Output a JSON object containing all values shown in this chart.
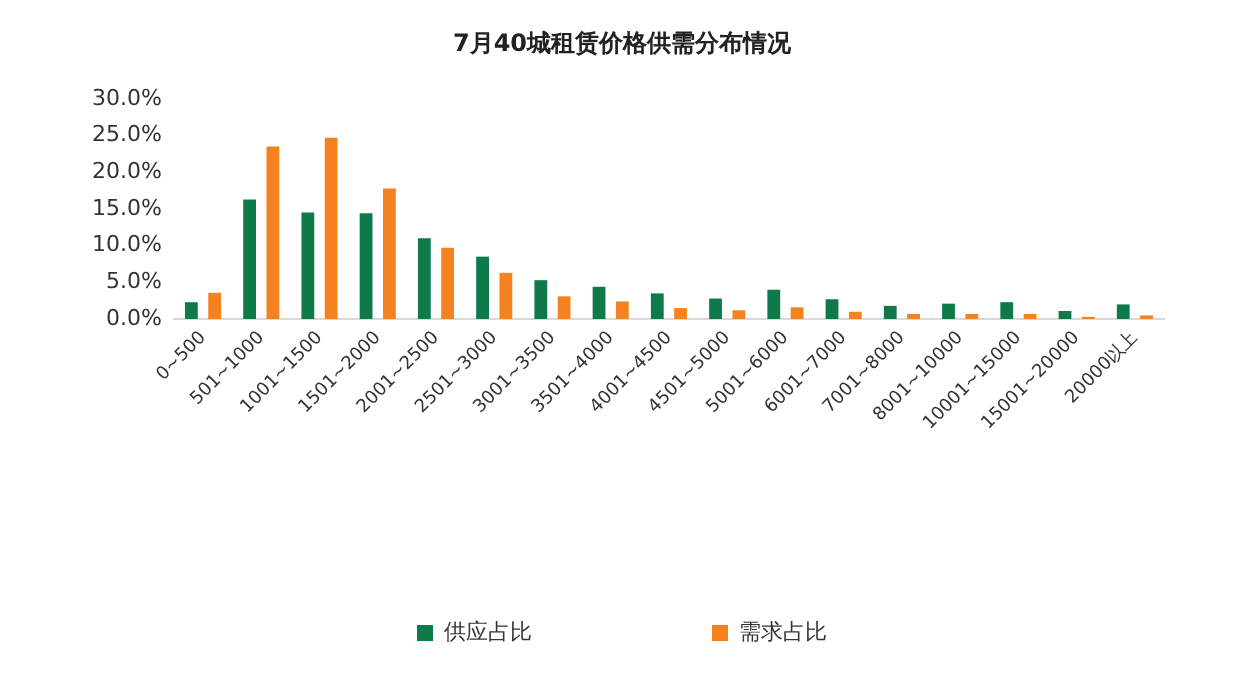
{
  "chart_data": {
    "type": "bar",
    "title": "7月40城租赁价格供需分布情况",
    "categories": [
      "0~500",
      "501~1000",
      "1001~1500",
      "1501~2000",
      "2001~2500",
      "2501~3000",
      "3001~3500",
      "3501~4000",
      "4001~4500",
      "4501~5000",
      "5001~6000",
      "6001~7000",
      "7001~8000",
      "8001~10000",
      "10001~15000",
      "15001~20000",
      "20000以上"
    ],
    "series": [
      {
        "name": "供应占比",
        "color": "#0e7a4a",
        "values": [
          2.3,
          16.3,
          14.5,
          14.4,
          11.0,
          8.5,
          5.3,
          4.4,
          3.5,
          2.8,
          4.0,
          2.7,
          1.8,
          2.1,
          2.3,
          1.1,
          2.0
        ]
      },
      {
        "name": "需求占比",
        "color": "#f58220",
        "values": [
          3.6,
          23.5,
          24.7,
          17.8,
          9.7,
          6.3,
          3.1,
          2.4,
          1.5,
          1.2,
          1.6,
          1.0,
          0.7,
          0.7,
          0.7,
          0.3,
          0.5
        ]
      }
    ],
    "ylim": [
      0,
      30
    ],
    "yticks": [
      {
        "value": 0,
        "label": "0.0%"
      },
      {
        "value": 5,
        "label": "5.0%"
      },
      {
        "value": 10,
        "label": "10.0%"
      },
      {
        "value": 15,
        "label": "15.0%"
      },
      {
        "value": 20,
        "label": "20.0%"
      },
      {
        "value": 25,
        "label": "25.0%"
      },
      {
        "value": 30,
        "label": "30.0%"
      }
    ],
    "grid": false,
    "legend": "bottom"
  }
}
